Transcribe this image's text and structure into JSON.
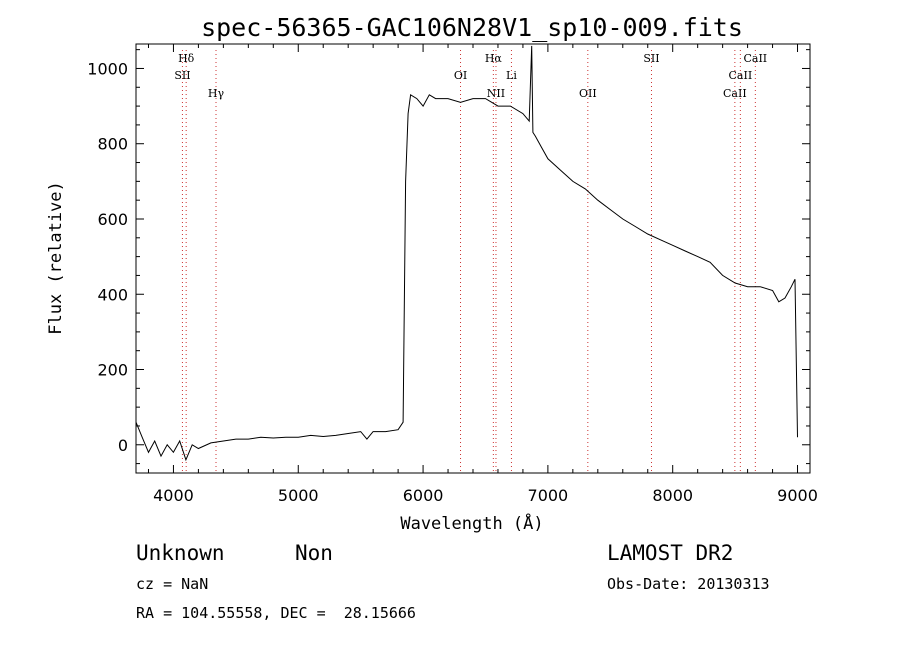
{
  "chart_data": {
    "type": "line",
    "title": "spec-56365-GAC106N28V1_sp10-009.fits",
    "xlabel": "Wavelength (Å)",
    "ylabel": "Flux (relative)",
    "xlim": [
      3700,
      9100
    ],
    "ylim": [
      -75,
      1065
    ],
    "xticks": [
      4000,
      5000,
      6000,
      7000,
      8000,
      9000
    ],
    "yticks": [
      0,
      200,
      400,
      600,
      800,
      1000
    ],
    "grid": false,
    "series": [
      {
        "x": [
          3700,
          3750,
          3800,
          3850,
          3900,
          3950,
          4000,
          4050,
          4100,
          4150,
          4200,
          4300,
          4400,
          4500,
          4600,
          4700,
          4800,
          4900,
          5000,
          5100,
          5200,
          5300,
          5400,
          5500,
          5550,
          5600,
          5700,
          5800,
          5840,
          5860,
          5880,
          5900,
          5950,
          6000,
          6050,
          6100,
          6200,
          6300,
          6400,
          6500,
          6600,
          6700,
          6800,
          6850,
          6870,
          6880,
          6900,
          6950,
          7000,
          7100,
          7200,
          7300,
          7400,
          7500,
          7600,
          7700,
          7800,
          7900,
          8000,
          8100,
          8200,
          8300,
          8400,
          8500,
          8600,
          8700,
          8800,
          8850,
          8900,
          8950,
          8980,
          9000
        ],
        "y": [
          60,
          20,
          -20,
          10,
          -30,
          0,
          -20,
          10,
          -40,
          0,
          -10,
          5,
          10,
          15,
          15,
          20,
          18,
          20,
          20,
          25,
          22,
          25,
          30,
          35,
          15,
          35,
          35,
          40,
          60,
          700,
          880,
          930,
          920,
          900,
          930,
          920,
          920,
          910,
          920,
          920,
          900,
          900,
          880,
          860,
          1060,
          830,
          820,
          790,
          760,
          730,
          700,
          680,
          650,
          625,
          600,
          580,
          560,
          545,
          530,
          515,
          500,
          485,
          450,
          430,
          420,
          420,
          410,
          380,
          390,
          420,
          440,
          20
        ]
      }
    ],
    "line_markers": [
      {
        "label": "Hδ",
        "wavelength": 4102,
        "row": 0
      },
      {
        "label": "SII",
        "wavelength": 4072,
        "row": 1
      },
      {
        "label": "Hγ",
        "wavelength": 4341,
        "row": 2
      },
      {
        "label": "OI",
        "wavelength": 6300,
        "row": 1
      },
      {
        "label": "Hα",
        "wavelength": 6563,
        "row": 0
      },
      {
        "label": "Li",
        "wavelength": 6708,
        "row": 1
      },
      {
        "label": "NII",
        "wavelength": 6584,
        "row": 2
      },
      {
        "label": "OII",
        "wavelength": 7320,
        "row": 2
      },
      {
        "label": "SII",
        "wavelength": 7830,
        "row": 0
      },
      {
        "label": "CaII",
        "wavelength": 8662,
        "row": 0
      },
      {
        "label": "CaII",
        "wavelength": 8542,
        "row": 1
      },
      {
        "label": "CaII",
        "wavelength": 8498,
        "row": 2
      }
    ],
    "line_color": "#000000",
    "marker_color": "#cc3333"
  },
  "info": {
    "object_class": "Unknown",
    "object_subclass": "Non",
    "survey": "LAMOST DR2",
    "redshift": "cz = NaN",
    "obs_date": "Obs-Date: 20130313",
    "coords": "RA = 104.55558, DEC =  28.15666"
  }
}
